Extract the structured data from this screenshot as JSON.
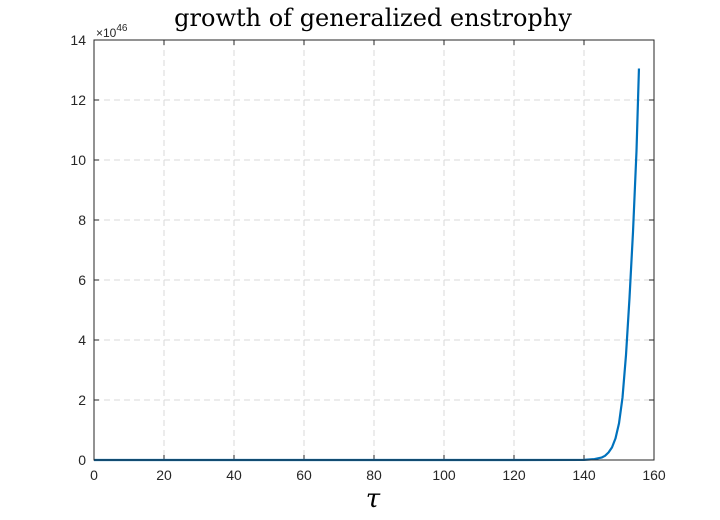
{
  "chart_data": {
    "type": "line",
    "title": "growth of generalized enstrophy",
    "xlabel": "τ",
    "ylabel": "",
    "y_multiplier_label": "×10",
    "y_multiplier_exponent": "46",
    "xlim": [
      0,
      160
    ],
    "ylim": [
      0,
      14
    ],
    "xticks": [
      0,
      20,
      40,
      60,
      80,
      100,
      120,
      140,
      160
    ],
    "yticks": [
      0,
      2,
      4,
      6,
      8,
      10,
      12,
      14
    ],
    "grid": true,
    "line_color": "#0072BD",
    "series": [
      {
        "x": [
          0,
          20,
          40,
          60,
          80,
          100,
          120,
          140,
          143,
          145,
          146,
          147,
          148,
          149,
          150,
          151,
          152,
          153,
          154,
          155,
          155.7
        ],
        "y": [
          0,
          0,
          0,
          0,
          0,
          0,
          0,
          0.005,
          0.03,
          0.08,
          0.14,
          0.25,
          0.42,
          0.72,
          1.22,
          2.08,
          3.5,
          5.4,
          7.6,
          10.3,
          13.05
        ]
      }
    ]
  }
}
